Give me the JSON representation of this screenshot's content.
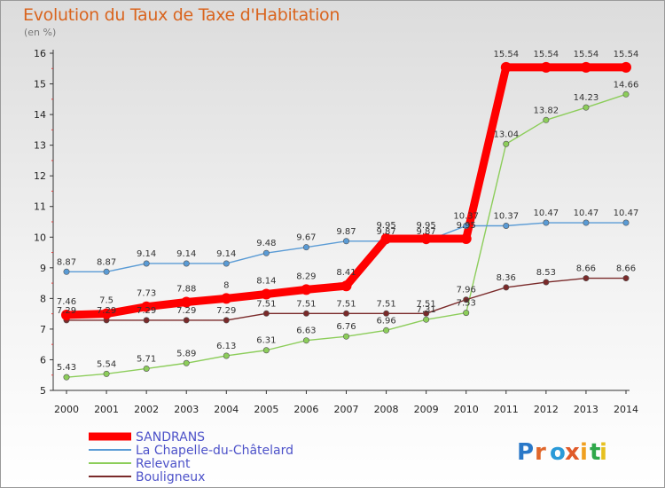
{
  "header": {
    "title": "Evolution du Taux de Taxe d'Habitation",
    "subtitle": "(en %)"
  },
  "logo": {
    "text": "Proxiti"
  },
  "colors": {
    "title": "#d9641e",
    "axis": "#333333",
    "legend_text": "#4d52c9"
  },
  "chart_data": {
    "type": "line",
    "title": "Evolution du Taux de Taxe d'Habitation",
    "subtitle": "(en %)",
    "xlabel": "",
    "ylabel": "",
    "ylim": [
      5,
      16
    ],
    "yticks": [
      5,
      6,
      7,
      8,
      9,
      10,
      11,
      12,
      13,
      14,
      15,
      16
    ],
    "grid": false,
    "legend_position": "bottom-left",
    "categories": [
      "2000",
      "2001",
      "2002",
      "2003",
      "2004",
      "2005",
      "2006",
      "2007",
      "2008",
      "2009",
      "2010",
      "2011",
      "2012",
      "2013",
      "2014"
    ],
    "series": [
      {
        "name": "SANDRANS",
        "color": "#ff0000",
        "values": [
          7.46,
          7.5,
          7.73,
          7.88,
          8,
          8.14,
          8.29,
          8.41,
          9.95,
          9.95,
          9.95,
          15.54,
          15.54,
          15.54,
          15.54
        ],
        "labels": [
          "7.46",
          "7.5",
          "7.73",
          "7.88",
          "8",
          "8.14",
          "8.29",
          "8.41",
          "9.95",
          "9.95",
          "9.95",
          "15.54",
          "15.54",
          "15.54",
          "15.54"
        ]
      },
      {
        "name": "La Chapelle-du-Châtelard",
        "color": "#5a9bd5",
        "values": [
          8.87,
          8.87,
          9.14,
          9.14,
          9.14,
          9.48,
          9.67,
          9.87,
          9.87,
          9.87,
          10.37,
          10.37,
          10.47,
          10.47,
          10.47
        ],
        "labels": [
          "8.87",
          "8.87",
          "9.14",
          "9.14",
          "9.14",
          "9.48",
          "9.67",
          "9.87",
          "9.87",
          "9.87",
          "10.37",
          "10.37",
          "10.47",
          "10.47",
          "10.47"
        ]
      },
      {
        "name": "Relevant",
        "color": "#8ccd5a",
        "values": [
          5.43,
          5.54,
          5.71,
          5.89,
          6.13,
          6.31,
          6.63,
          6.76,
          6.96,
          7.31,
          7.53,
          13.04,
          13.82,
          14.23,
          14.66
        ],
        "labels": [
          "5.43",
          "5.54",
          "5.71",
          "5.89",
          "6.13",
          "6.31",
          "6.63",
          "6.76",
          "6.96",
          "7.31",
          "7.53",
          "13.04",
          "13.82",
          "14.23",
          "14.66"
        ]
      },
      {
        "name": "Bouligneux",
        "color": "#7a2a2a",
        "values": [
          7.29,
          7.29,
          7.29,
          7.29,
          7.29,
          7.51,
          7.51,
          7.51,
          7.51,
          7.51,
          7.96,
          8.36,
          8.53,
          8.66,
          8.66
        ],
        "labels": [
          "7.29",
          "7.29",
          "7.29",
          "7.29",
          "7.29",
          "7.51",
          "7.51",
          "7.51",
          "7.51",
          "7.51",
          "7.96",
          "8.36",
          "8.53",
          "8.66",
          "8.66"
        ]
      }
    ]
  }
}
